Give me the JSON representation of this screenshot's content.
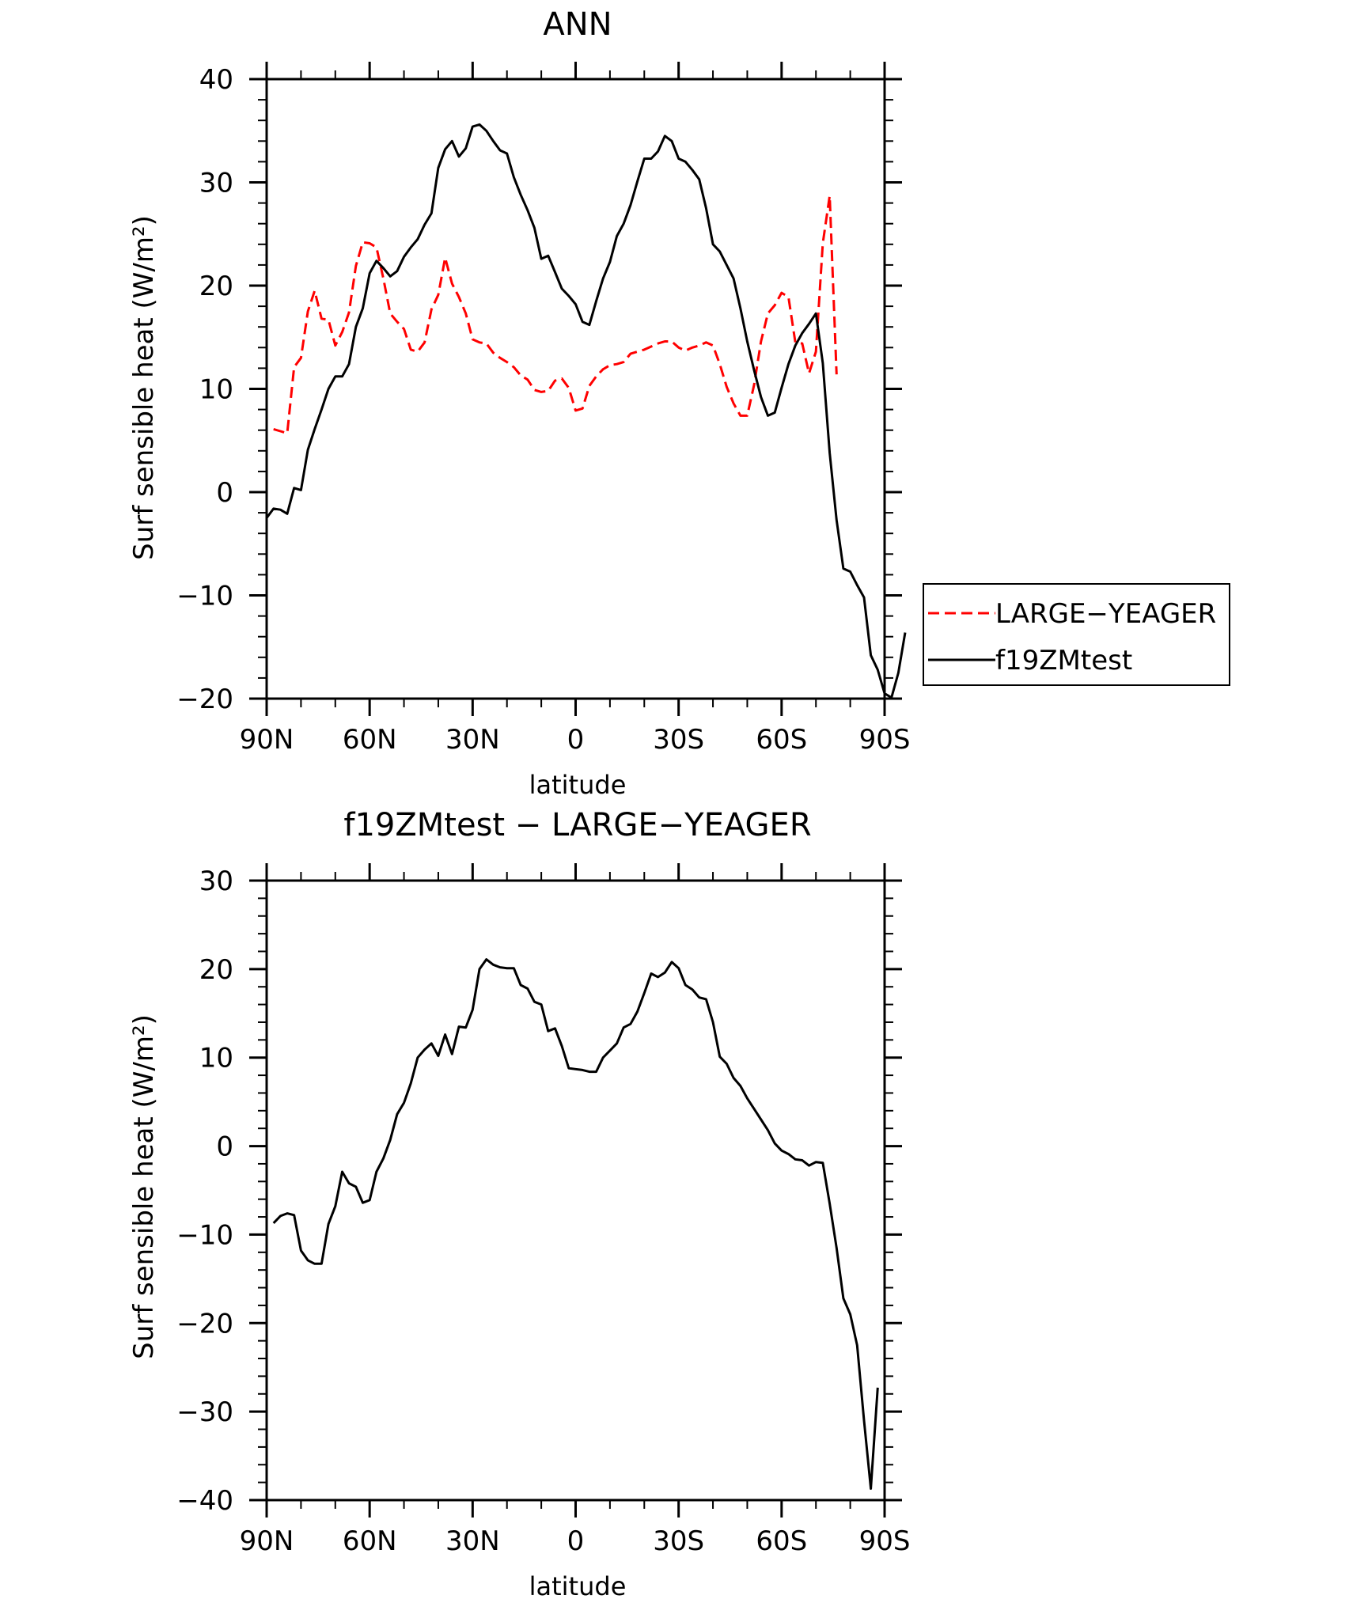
{
  "chart_data": [
    {
      "type": "line",
      "title": "ANN",
      "xlabel": "latitude",
      "ylabel": "Surf sensible heat (W/m²)",
      "xlim": [
        90,
        -90
      ],
      "ylim": [
        -20,
        40
      ],
      "x_ticks": [
        90,
        60,
        30,
        0,
        -30,
        -60,
        -90
      ],
      "x_tick_labels": [
        "90N",
        "60N",
        "30N",
        "0",
        "30S",
        "60S",
        "90S"
      ],
      "y_ticks": [
        40,
        30,
        20,
        10,
        0,
        -10,
        -20
      ],
      "y_tick_labels": [
        "40",
        "30",
        "20",
        "10",
        "0",
        "−10",
        "−20"
      ],
      "legend": {
        "placement": "right",
        "entries": [
          {
            "label": "LARGE−YEAGER",
            "color": "#ff0000",
            "dash": "dashed"
          },
          {
            "label": "f19ZMtest",
            "color": "#000000",
            "dash": "solid"
          }
        ]
      },
      "series": [
        {
          "name": "LARGE−YEAGER",
          "color": "#ff0000",
          "dash": "dashed",
          "points": [
            [
              88,
              6.1
            ],
            [
              86,
              5.9
            ],
            [
              84,
              5.7
            ],
            [
              82,
              12.1
            ],
            [
              80,
              13
            ],
            [
              78,
              17.5
            ],
            [
              76,
              19.5
            ],
            [
              74,
              16.8
            ],
            [
              72,
              16.7
            ],
            [
              70,
              14.2
            ],
            [
              68,
              15.5
            ],
            [
              66,
              17.4
            ],
            [
              64,
              21.9
            ],
            [
              62,
              24.2
            ],
            [
              60,
              24.1
            ],
            [
              58,
              23.7
            ],
            [
              56,
              20.7
            ],
            [
              54,
              17.3
            ],
            [
              52,
              16.5
            ],
            [
              50,
              15.8
            ],
            [
              48,
              13.8
            ],
            [
              46,
              13.6
            ],
            [
              44,
              14.5
            ],
            [
              42,
              17.7
            ],
            [
              40,
              19.1
            ],
            [
              38,
              22.7
            ],
            [
              36,
              20.2
            ],
            [
              34,
              18.9
            ],
            [
              32,
              17.3
            ],
            [
              30,
              14.8
            ],
            [
              28,
              14.5
            ],
            [
              26,
              14.4
            ],
            [
              24,
              13.5
            ],
            [
              22,
              13
            ],
            [
              20,
              12.6
            ],
            [
              18,
              12.1
            ],
            [
              16,
              11.3
            ],
            [
              14,
              10.9
            ],
            [
              12,
              9.9
            ],
            [
              10,
              9.7
            ],
            [
              8,
              9.8
            ],
            [
              6,
              10.8
            ],
            [
              4,
              11
            ],
            [
              2,
              10.1
            ],
            [
              0,
              7.9
            ],
            [
              -2,
              8.1
            ],
            [
              -4,
              10.3
            ],
            [
              -6,
              11.2
            ],
            [
              -8,
              11.9
            ],
            [
              -10,
              12.3
            ],
            [
              -12,
              12.4
            ],
            [
              -14,
              12.6
            ],
            [
              -16,
              13.4
            ],
            [
              -18,
              13.6
            ],
            [
              -20,
              13.8
            ],
            [
              -22,
              14.1
            ],
            [
              -24,
              14.4
            ],
            [
              -26,
              14.6
            ],
            [
              -28,
              14.6
            ],
            [
              -30,
              14
            ],
            [
              -32,
              13.7
            ],
            [
              -34,
              14
            ],
            [
              -36,
              14.2
            ],
            [
              -38,
              14.5
            ],
            [
              -40,
              14.2
            ],
            [
              -42,
              12.4
            ],
            [
              -44,
              10.2
            ],
            [
              -46,
              8.6
            ],
            [
              -48,
              7.4
            ],
            [
              -50,
              7.4
            ],
            [
              -52,
              10.4
            ],
            [
              -54,
              14.6
            ],
            [
              -56,
              17.3
            ],
            [
              -58,
              18.1
            ],
            [
              -60,
              19.3
            ],
            [
              -62,
              18.9
            ],
            [
              -64,
              14.5
            ],
            [
              -66,
              14.4
            ],
            [
              -68,
              11.5
            ],
            [
              -70,
              13.6
            ],
            [
              -72,
              24.1
            ],
            [
              -74,
              28.7
            ],
            [
              -76,
              11.4
            ]
          ]
        },
        {
          "name": "f19ZMtest",
          "color": "#000000",
          "dash": "solid",
          "points": [
            [
              90,
              -2.5
            ],
            [
              88,
              -1.6
            ],
            [
              86,
              -1.7
            ],
            [
              84,
              -2.1
            ],
            [
              82,
              0.4
            ],
            [
              80,
              0.2
            ],
            [
              78,
              4.1
            ],
            [
              76,
              6.1
            ],
            [
              74,
              8
            ],
            [
              72,
              10
            ],
            [
              70,
              11.2
            ],
            [
              68,
              11.2
            ],
            [
              66,
              12.4
            ],
            [
              64,
              16
            ],
            [
              62,
              17.8
            ],
            [
              60,
              21.2
            ],
            [
              58,
              22.4
            ],
            [
              56,
              21.7
            ],
            [
              54,
              20.9
            ],
            [
              52,
              21.4
            ],
            [
              50,
              22.8
            ],
            [
              48,
              23.7
            ],
            [
              46,
              24.5
            ],
            [
              44,
              25.9
            ],
            [
              42,
              27
            ],
            [
              40,
              31.4
            ],
            [
              38,
              33.2
            ],
            [
              36,
              34
            ],
            [
              34,
              32.5
            ],
            [
              32,
              33.3
            ],
            [
              30,
              35.4
            ],
            [
              28,
              35.6
            ],
            [
              26,
              35
            ],
            [
              24,
              34
            ],
            [
              22,
              33.1
            ],
            [
              20,
              32.8
            ],
            [
              18,
              30.5
            ],
            [
              16,
              28.8
            ],
            [
              14,
              27.3
            ],
            [
              12,
              25.6
            ],
            [
              10,
              22.6
            ],
            [
              8,
              22.9
            ],
            [
              6,
              21.3
            ],
            [
              4,
              19.7
            ],
            [
              2,
              19
            ],
            [
              0,
              18.2
            ],
            [
              -2,
              16.5
            ],
            [
              -4,
              16.2
            ],
            [
              -6,
              18.5
            ],
            [
              -8,
              20.7
            ],
            [
              -10,
              22.3
            ],
            [
              -12,
              24.8
            ],
            [
              -14,
              26
            ],
            [
              -16,
              27.8
            ],
            [
              -18,
              30.1
            ],
            [
              -20,
              32.3
            ],
            [
              -22,
              32.3
            ],
            [
              -24,
              33
            ],
            [
              -26,
              34.5
            ],
            [
              -28,
              34
            ],
            [
              -30,
              32.3
            ],
            [
              -32,
              32
            ],
            [
              -34,
              31.2
            ],
            [
              -36,
              30.3
            ],
            [
              -38,
              27.5
            ],
            [
              -40,
              24
            ],
            [
              -42,
              23.3
            ],
            [
              -44,
              22
            ],
            [
              -46,
              20.7
            ],
            [
              -48,
              17.8
            ],
            [
              -50,
              14.6
            ],
            [
              -52,
              11.8
            ],
            [
              -54,
              9.2
            ],
            [
              -56,
              7.4
            ],
            [
              -58,
              7.7
            ],
            [
              -60,
              10.1
            ],
            [
              -62,
              12.4
            ],
            [
              -64,
              14.2
            ],
            [
              -66,
              15.4
            ],
            [
              -68,
              16.3
            ],
            [
              -70,
              17.3
            ],
            [
              -72,
              12.5
            ],
            [
              -74,
              3.8
            ],
            [
              -76,
              -2.7
            ],
            [
              -78,
              -7.4
            ],
            [
              -80,
              -7.7
            ],
            [
              -82,
              -9
            ],
            [
              -84,
              -10.2
            ],
            [
              -86,
              -15.8
            ],
            [
              -88,
              -17.2
            ],
            [
              -90,
              -19.5
            ],
            [
              -92,
              -19.9
            ],
            [
              -94,
              -17.5
            ],
            [
              -96,
              -13.6
            ]
          ]
        }
      ]
    },
    {
      "type": "line",
      "title": "f19ZMtest − LARGE−YEAGER",
      "xlabel": "latitude",
      "ylabel": "Surf sensible heat (W/m²)",
      "xlim": [
        90,
        -90
      ],
      "ylim": [
        -40,
        30
      ],
      "x_ticks": [
        90,
        60,
        30,
        0,
        -30,
        -60,
        -90
      ],
      "x_tick_labels": [
        "90N",
        "60N",
        "30N",
        "0",
        "30S",
        "60S",
        "90S"
      ],
      "y_ticks": [
        30,
        20,
        10,
        0,
        -10,
        -20,
        -30,
        -40
      ],
      "y_tick_labels": [
        "30",
        "20",
        "10",
        "0",
        "−10",
        "−20",
        "−30",
        "−40"
      ],
      "series": [
        {
          "color": "#000000",
          "dash": "solid",
          "points": [
            [
              88,
              -8.7
            ],
            [
              86,
              -7.9
            ],
            [
              84,
              -7.6
            ],
            [
              82,
              -7.8
            ],
            [
              80,
              -11.8
            ],
            [
              78,
              -12.9
            ],
            [
              76,
              -13.3
            ],
            [
              74,
              -13.3
            ],
            [
              72,
              -8.8
            ],
            [
              70,
              -6.8
            ],
            [
              68,
              -2.9
            ],
            [
              66,
              -4.2
            ],
            [
              64,
              -4.6
            ],
            [
              62,
              -6.4
            ],
            [
              60,
              -6.1
            ],
            [
              58,
              -2.9
            ],
            [
              56,
              -1.4
            ],
            [
              54,
              0.7
            ],
            [
              52,
              3.6
            ],
            [
              50,
              4.9
            ],
            [
              48,
              7.1
            ],
            [
              46,
              10
            ],
            [
              44,
              10.9
            ],
            [
              42,
              11.6
            ],
            [
              40,
              10.2
            ],
            [
              38,
              12.6
            ],
            [
              36,
              10.4
            ],
            [
              34,
              13.5
            ],
            [
              32,
              13.4
            ],
            [
              30,
              15.4
            ],
            [
              28,
              20
            ],
            [
              26,
              21.1
            ],
            [
              24,
              20.5
            ],
            [
              22,
              20.2
            ],
            [
              20,
              20.1
            ],
            [
              18,
              20.1
            ],
            [
              16,
              18.2
            ],
            [
              14,
              17.8
            ],
            [
              12,
              16.3
            ],
            [
              10,
              16
            ],
            [
              8,
              13
            ],
            [
              6,
              13.3
            ],
            [
              4,
              11.3
            ],
            [
              2,
              8.8
            ],
            [
              0,
              8.7
            ],
            [
              -2,
              8.6
            ],
            [
              -4,
              8.4
            ],
            [
              -6,
              8.4
            ],
            [
              -8,
              10
            ],
            [
              -10,
              10.8
            ],
            [
              -12,
              11.6
            ],
            [
              -14,
              13.4
            ],
            [
              -16,
              13.8
            ],
            [
              -18,
              15.2
            ],
            [
              -20,
              17.3
            ],
            [
              -22,
              19.5
            ],
            [
              -24,
              19.1
            ],
            [
              -26,
              19.6
            ],
            [
              -28,
              20.8
            ],
            [
              -30,
              20.1
            ],
            [
              -32,
              18.2
            ],
            [
              -34,
              17.7
            ],
            [
              -36,
              16.8
            ],
            [
              -38,
              16.6
            ],
            [
              -40,
              14
            ],
            [
              -42,
              10.1
            ],
            [
              -44,
              9.3
            ],
            [
              -46,
              7.7
            ],
            [
              -48,
              6.8
            ],
            [
              -50,
              5.4
            ],
            [
              -52,
              4.2
            ],
            [
              -54,
              3
            ],
            [
              -56,
              1.8
            ],
            [
              -58,
              0.3
            ],
            [
              -60,
              -0.5
            ],
            [
              -62,
              -0.9
            ],
            [
              -64,
              -1.5
            ],
            [
              -66,
              -1.6
            ],
            [
              -68,
              -2.2
            ],
            [
              -70,
              -1.8
            ],
            [
              -72,
              -1.9
            ],
            [
              -74,
              -6.5
            ],
            [
              -76,
              -11.5
            ],
            [
              -78,
              -17.2
            ],
            [
              -80,
              -19
            ],
            [
              -82,
              -22.5
            ],
            [
              -84,
              -31
            ],
            [
              -86,
              -38.7
            ],
            [
              -88,
              -27.3
            ]
          ]
        }
      ]
    }
  ]
}
